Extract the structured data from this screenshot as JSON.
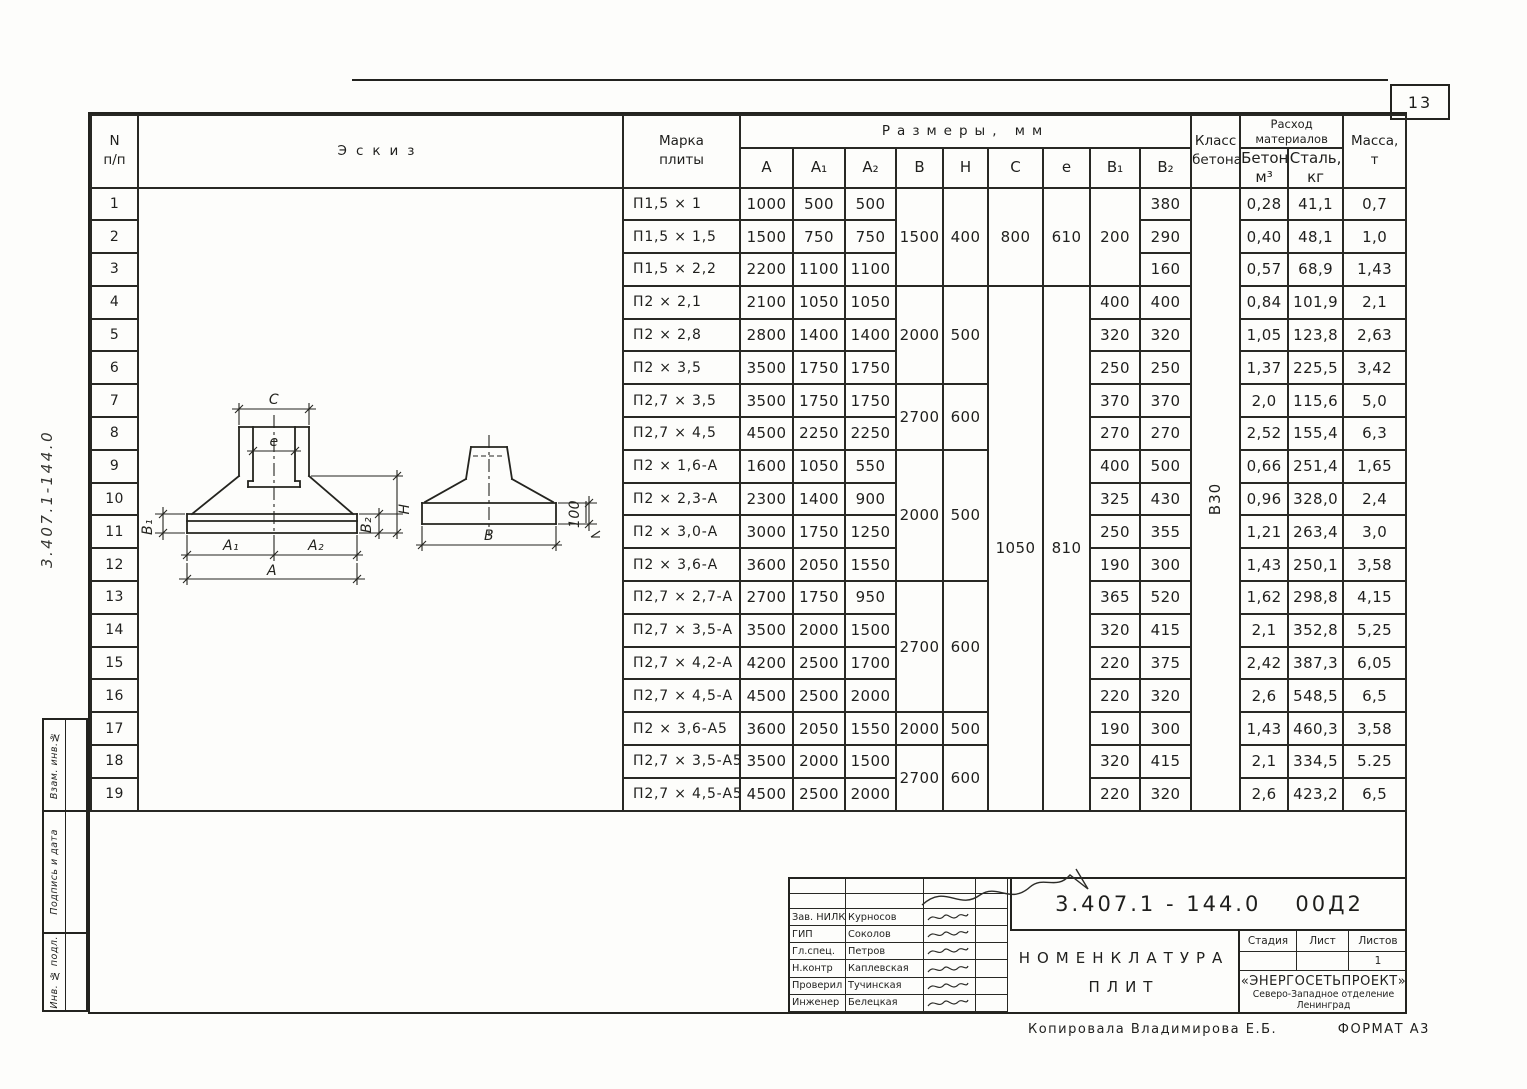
{
  "page": {
    "sheet_number": "13",
    "side_note_vertical": "3.407.1-144.0",
    "footer_copied_by": "Копировала  Владимирова Е.Б.",
    "footer_format": "ФОРМАТ А3"
  },
  "stamp_left": {
    "cells": [
      "Взам. инв.№",
      "Подпись и дата",
      "Инв. № подл."
    ]
  },
  "table": {
    "header": {
      "num_top": "N",
      "num_bottom": "п/п",
      "sketch": "Эскиз",
      "mark_line1": "Марка",
      "mark_line2": "плиты",
      "dims_group": "Размеры,  мм",
      "dim_cols": [
        "А",
        "А₁",
        "А₂",
        "В",
        "Н",
        "С",
        "е",
        "В₁",
        "В₂"
      ],
      "class_line1": "Класс",
      "class_line2": "бетона",
      "materials_line1": "Расход",
      "materials_line2": "материалов",
      "mat1_line1": "Бетон,",
      "mat1_line2": "м³",
      "mat2_line1": "Сталь,",
      "mat2_line2": "кг",
      "mass_line1": "Масса,",
      "mass_line2": "т"
    },
    "concrete_class_value": "В30",
    "rows": [
      {
        "n": "1",
        "mark": "П1,5 × 1",
        "cells": [
          [
            "1000"
          ],
          [
            "500"
          ],
          [
            "500"
          ],
          [
            "1500",
            3
          ],
          [
            "400",
            3
          ],
          [
            "800",
            3
          ],
          [
            "610",
            3
          ],
          [
            "200",
            3
          ],
          [
            "380"
          ],
          [
            "0,28"
          ],
          [
            "41,1"
          ],
          [
            "0,7"
          ]
        ]
      },
      {
        "n": "2",
        "mark": "П1,5 × 1,5",
        "cells": [
          [
            "1500"
          ],
          [
            "750"
          ],
          [
            "750"
          ],
          null,
          null,
          null,
          null,
          null,
          [
            "290"
          ],
          [
            "0,40"
          ],
          [
            "48,1"
          ],
          [
            "1,0"
          ]
        ]
      },
      {
        "n": "3",
        "mark": "П1,5 × 2,2",
        "cells": [
          [
            "2200"
          ],
          [
            "1100"
          ],
          [
            "1100"
          ],
          null,
          null,
          null,
          null,
          null,
          [
            "160"
          ],
          [
            "0,57"
          ],
          [
            "68,9"
          ],
          [
            "1,43"
          ]
        ]
      },
      {
        "n": "4",
        "mark": "П2 × 2,1",
        "cells": [
          [
            "2100"
          ],
          [
            "1050"
          ],
          [
            "1050"
          ],
          [
            "2000",
            3
          ],
          [
            "500",
            3
          ],
          [
            "1050",
            16
          ],
          [
            "810",
            16
          ],
          [
            "400"
          ],
          [
            "400"
          ],
          [
            "0,84"
          ],
          [
            "101,9"
          ],
          [
            "2,1"
          ]
        ]
      },
      {
        "n": "5",
        "mark": "П2 × 2,8",
        "cells": [
          [
            "2800"
          ],
          [
            "1400"
          ],
          [
            "1400"
          ],
          null,
          null,
          null,
          null,
          [
            "320"
          ],
          [
            "320"
          ],
          [
            "1,05"
          ],
          [
            "123,8"
          ],
          [
            "2,63"
          ]
        ]
      },
      {
        "n": "6",
        "mark": "П2 × 3,5",
        "cells": [
          [
            "3500"
          ],
          [
            "1750"
          ],
          [
            "1750"
          ],
          null,
          null,
          null,
          null,
          [
            "250"
          ],
          [
            "250"
          ],
          [
            "1,37"
          ],
          [
            "225,5"
          ],
          [
            "3,42"
          ]
        ]
      },
      {
        "n": "7",
        "mark": "П2,7 × 3,5",
        "cells": [
          [
            "3500"
          ],
          [
            "1750"
          ],
          [
            "1750"
          ],
          [
            "2700",
            2
          ],
          [
            "600",
            2
          ],
          null,
          null,
          [
            "370"
          ],
          [
            "370"
          ],
          [
            "2,0"
          ],
          [
            "115,6"
          ],
          [
            "5,0"
          ]
        ]
      },
      {
        "n": "8",
        "mark": "П2,7 × 4,5",
        "cells": [
          [
            "4500"
          ],
          [
            "2250"
          ],
          [
            "2250"
          ],
          null,
          null,
          null,
          null,
          [
            "270"
          ],
          [
            "270"
          ],
          [
            "2,52"
          ],
          [
            "155,4"
          ],
          [
            "6,3"
          ]
        ]
      },
      {
        "n": "9",
        "mark": "П2 × 1,6-А",
        "cells": [
          [
            "1600"
          ],
          [
            "1050"
          ],
          [
            "550"
          ],
          [
            "2000",
            4
          ],
          [
            "500",
            4
          ],
          null,
          null,
          [
            "400"
          ],
          [
            "500"
          ],
          [
            "0,66"
          ],
          [
            "251,4"
          ],
          [
            "1,65"
          ]
        ]
      },
      {
        "n": "10",
        "mark": "П2 × 2,3-А",
        "cells": [
          [
            "2300"
          ],
          [
            "1400"
          ],
          [
            "900"
          ],
          null,
          null,
          null,
          null,
          [
            "325"
          ],
          [
            "430"
          ],
          [
            "0,96"
          ],
          [
            "328,0"
          ],
          [
            "2,4"
          ]
        ]
      },
      {
        "n": "11",
        "mark": "П2 × 3,0-А",
        "cells": [
          [
            "3000"
          ],
          [
            "1750"
          ],
          [
            "1250"
          ],
          null,
          null,
          null,
          null,
          [
            "250"
          ],
          [
            "355"
          ],
          [
            "1,21"
          ],
          [
            "263,4"
          ],
          [
            "3,0"
          ]
        ]
      },
      {
        "n": "12",
        "mark": "П2 × 3,6-А",
        "cells": [
          [
            "3600"
          ],
          [
            "2050"
          ],
          [
            "1550"
          ],
          null,
          null,
          null,
          null,
          [
            "190"
          ],
          [
            "300"
          ],
          [
            "1,43"
          ],
          [
            "250,1"
          ],
          [
            "3,58"
          ]
        ]
      },
      {
        "n": "13",
        "mark": "П2,7 × 2,7-А",
        "cells": [
          [
            "2700"
          ],
          [
            "1750"
          ],
          [
            "950"
          ],
          [
            "2700",
            4
          ],
          [
            "600",
            4
          ],
          null,
          null,
          [
            "365"
          ],
          [
            "520"
          ],
          [
            "1,62"
          ],
          [
            "298,8"
          ],
          [
            "4,15"
          ]
        ]
      },
      {
        "n": "14",
        "mark": "П2,7 × 3,5-А",
        "cells": [
          [
            "3500"
          ],
          [
            "2000"
          ],
          [
            "1500"
          ],
          null,
          null,
          null,
          null,
          [
            "320"
          ],
          [
            "415"
          ],
          [
            "2,1"
          ],
          [
            "352,8"
          ],
          [
            "5,25"
          ]
        ]
      },
      {
        "n": "15",
        "mark": "П2,7 × 4,2-А",
        "cells": [
          [
            "4200"
          ],
          [
            "2500"
          ],
          [
            "1700"
          ],
          null,
          null,
          null,
          null,
          [
            "220"
          ],
          [
            "375"
          ],
          [
            "2,42"
          ],
          [
            "387,3"
          ],
          [
            "6,05"
          ]
        ]
      },
      {
        "n": "16",
        "mark": "П2,7 × 4,5-А",
        "cells": [
          [
            "4500"
          ],
          [
            "2500"
          ],
          [
            "2000"
          ],
          null,
          null,
          null,
          null,
          [
            "220"
          ],
          [
            "320"
          ],
          [
            "2,6"
          ],
          [
            "548,5"
          ],
          [
            "6,5"
          ]
        ]
      },
      {
        "n": "17",
        "mark": "П2 × 3,6-А5",
        "cells": [
          [
            "3600"
          ],
          [
            "2050"
          ],
          [
            "1550"
          ],
          [
            "2000"
          ],
          [
            "500"
          ],
          null,
          null,
          [
            "190"
          ],
          [
            "300"
          ],
          [
            "1,43"
          ],
          [
            "460,3"
          ],
          [
            "3,58"
          ]
        ]
      },
      {
        "n": "18",
        "mark": "П2,7 × 3,5-А5",
        "cells": [
          [
            "3500"
          ],
          [
            "2000"
          ],
          [
            "1500"
          ],
          [
            "2700",
            2
          ],
          [
            "600",
            2
          ],
          null,
          null,
          [
            "320"
          ],
          [
            "415"
          ],
          [
            "2,1"
          ],
          [
            "334,5"
          ],
          [
            "5.25"
          ]
        ]
      },
      {
        "n": "19",
        "mark": "П2,7 × 4,5-А5",
        "cells": [
          [
            "4500"
          ],
          [
            "2500"
          ],
          [
            "2000"
          ],
          null,
          null,
          null,
          null,
          [
            "220"
          ],
          [
            "320"
          ],
          [
            "2,6"
          ],
          [
            "423,2"
          ],
          [
            "6,5"
          ]
        ]
      }
    ]
  },
  "sketch_labels": {
    "c": "С",
    "e": "е",
    "b1": "В₁",
    "b2": "В₂",
    "h": "Н",
    "a1": "А₁",
    "a2": "А₂",
    "a": "А",
    "b": "В",
    "slope": "100"
  },
  "title_block": {
    "doc_number": "3.407.1 - 144.0",
    "doc_suffix": "00Д2",
    "title_line1": "НОМЕНКЛАТУРА",
    "title_line2": "ПЛИТ",
    "stage_label": "Стадия",
    "sheet_label": "Лист",
    "sheets_label": "Листов",
    "stage_value": "",
    "sheet_value": "",
    "sheets_value": "1",
    "org_name": "«ЭНЕРГОСЕТЬПРОЕКТ»",
    "org_line2": "Северо-Западное отделение",
    "org_line3": "Ленинград",
    "signatures": [
      {
        "role": "Зав. НИЛКЭ",
        "name": "Курносов"
      },
      {
        "role": "ГИП",
        "name": "Соколов"
      },
      {
        "role": "Гл.спец.",
        "name": "Петров"
      },
      {
        "role": "Н.контр",
        "name": "Каплевская"
      },
      {
        "role": "Проверил",
        "name": "Тучинская"
      },
      {
        "role": "Инженер",
        "name": "Белецкая"
      }
    ]
  }
}
